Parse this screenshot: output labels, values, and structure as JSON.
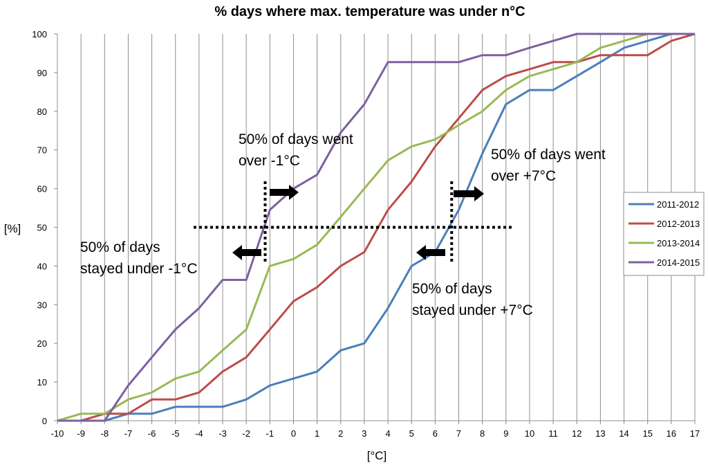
{
  "chart_data": {
    "type": "line",
    "title": "% days where max. temperature was under n°C",
    "xlabel": "[°C]",
    "ylabel": "[%]",
    "x": [
      -10,
      -9,
      -8,
      -7,
      -6,
      -5,
      -4,
      -3,
      -2,
      -1,
      0,
      1,
      2,
      3,
      4,
      5,
      6,
      7,
      8,
      9,
      10,
      11,
      12,
      13,
      14,
      15,
      16,
      17
    ],
    "xlim": [
      -10,
      17
    ],
    "ylim": [
      0,
      100
    ],
    "yticks": [
      0,
      10,
      20,
      30,
      40,
      50,
      60,
      70,
      80,
      90,
      100
    ],
    "grid": "vertical",
    "legend_position": "right",
    "series": [
      {
        "name": "2011-2012",
        "color": "#4a7ebb",
        "values": [
          0,
          0,
          0,
          1.8,
          1.8,
          3.6,
          3.6,
          3.6,
          5.5,
          9.1,
          10.9,
          12.7,
          18.2,
          20,
          29.1,
          40,
          43.6,
          54.5,
          69.1,
          81.8,
          85.5,
          85.5,
          89.1,
          92.7,
          96.4,
          98.2,
          100,
          100
        ]
      },
      {
        "name": "2012-2013",
        "color": "#be4b48",
        "values": [
          0,
          0,
          1.8,
          1.8,
          5.5,
          5.5,
          7.3,
          12.7,
          16.4,
          23.6,
          30.9,
          34.5,
          40,
          43.6,
          54.5,
          61.8,
          70.9,
          78.2,
          85.5,
          89.1,
          90.9,
          92.7,
          92.7,
          94.5,
          94.5,
          94.5,
          98.2,
          100
        ]
      },
      {
        "name": "2013-2014",
        "color": "#98b954",
        "values": [
          0,
          1.8,
          1.8,
          5.5,
          7.3,
          10.9,
          12.7,
          18.2,
          23.6,
          40,
          41.8,
          45.5,
          52.7,
          60,
          67.3,
          70.9,
          72.7,
          76.4,
          80,
          85.5,
          89.1,
          90.9,
          92.7,
          96.4,
          98.2,
          100,
          100,
          100
        ]
      },
      {
        "name": "2014-2015",
        "color": "#7d60a0",
        "values": [
          0,
          0,
          0,
          9.1,
          16.4,
          23.6,
          29.1,
          36.4,
          36.4,
          54.5,
          60,
          63.6,
          74.5,
          81.8,
          92.7,
          92.7,
          92.7,
          92.7,
          94.5,
          94.5,
          96.4,
          98.2,
          100,
          100,
          100,
          100,
          100,
          100
        ]
      }
    ],
    "annotations": [
      {
        "lines": [
          "50% of days went",
          "over -1°C"
        ]
      },
      {
        "lines": [
          "50% of days",
          "stayed under -1°C"
        ]
      },
      {
        "lines": [
          "50% of days went",
          "over +7°C"
        ]
      },
      {
        "lines": [
          "50% of days",
          "stayed under +7°C"
        ]
      }
    ],
    "reference_lines": {
      "y": 50,
      "x": [
        -1.2,
        6.7
      ]
    }
  }
}
